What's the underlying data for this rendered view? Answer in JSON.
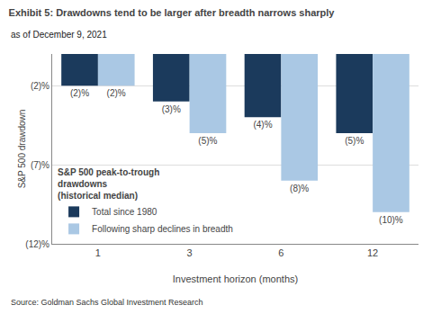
{
  "chart_data": {
    "type": "bar",
    "title": "Exhibit 5: Drawdowns tend to be larger after breadth narrows sharply",
    "subtitle": "as of December 9, 2021",
    "source": "Source: Goldman Sachs Global Investment Research",
    "annotation": "S&P 500 peak-to-trough\ndrawdowns\n(historical median)",
    "xlabel": "Investment horizon (months)",
    "ylabel": "S&P 500 drawdown",
    "categories": [
      "1",
      "3",
      "6",
      "12"
    ],
    "series": [
      {
        "name": "Total since 1980",
        "color": "#1b3a5c",
        "values": [
          -2,
          -3,
          -4,
          -5
        ],
        "value_labels": [
          "(2)%",
          "(3)%",
          "(4)%",
          "(5)%"
        ]
      },
      {
        "name": "Following sharp declines in breadth",
        "color": "#aac8e4",
        "values": [
          -2,
          -5,
          -8,
          -10
        ],
        "value_labels": [
          "(2)%",
          "(5)%",
          "(8)%",
          "(10)%"
        ]
      }
    ],
    "ylim": [
      -12,
      0
    ],
    "yticks": [
      {
        "value": -2,
        "label": "(2)%"
      },
      {
        "value": -7,
        "label": "(7)%"
      },
      {
        "value": -12,
        "label": "(12)%"
      }
    ],
    "grid": true,
    "legend": "lower left",
    "data_labels": true
  }
}
